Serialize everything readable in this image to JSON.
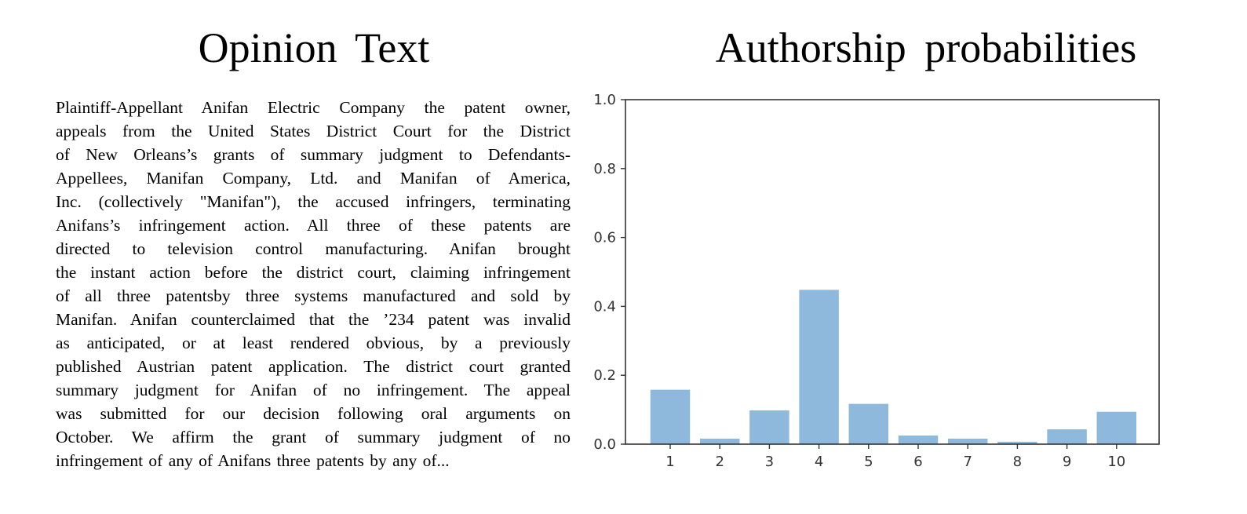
{
  "document": {
    "left_title": "Opinion Text",
    "right_title": "Authorship probabilities",
    "opinion_lines": [
      "Plaintiff-Appellant Anifan Electric Company the patent owner,",
      "appeals from the United States District Court for the District",
      "of New Orleans’s grants of summary judgment to Defendants-",
      "Appellees, Manifan Company, Ltd. and Manifan of America,",
      "Inc. (collectively \"Manifan\"), the accused infringers, terminating",
      "Anifans’s infringement action. All three of these patents are",
      "directed to television control manufacturing. Anifan brought",
      "the instant action before the district court, claiming infringement",
      "of all three patentsby three systems manufactured and sold by",
      "Manifan. Anifan counterclaimed that the ’234 patent was invalid",
      "as anticipated, or at least rendered obvious, by a previously",
      "published Austrian patent application. The district court granted",
      "summary judgment for Anifan of no infringement. The appeal",
      "was submitted for our decision following oral arguments on",
      "October. We affirm the grant of summary judgment of no",
      "infringement of any of Anifans three patents by any of..."
    ]
  },
  "chart_data": {
    "type": "bar",
    "title": "Authorship probabilities",
    "xlabel": "",
    "ylabel": "",
    "categories": [
      "1",
      "2",
      "3",
      "4",
      "5",
      "6",
      "7",
      "8",
      "9",
      "10"
    ],
    "values": [
      0.158,
      0.016,
      0.098,
      0.448,
      0.117,
      0.025,
      0.016,
      0.007,
      0.043,
      0.094
    ],
    "ylim": [
      0,
      1.0
    ],
    "yticks": [
      "0.0",
      "0.2",
      "0.4",
      "0.6",
      "0.8",
      "1.0"
    ],
    "bar_color": "#8fb9dc",
    "grid": false,
    "legend": "none"
  }
}
